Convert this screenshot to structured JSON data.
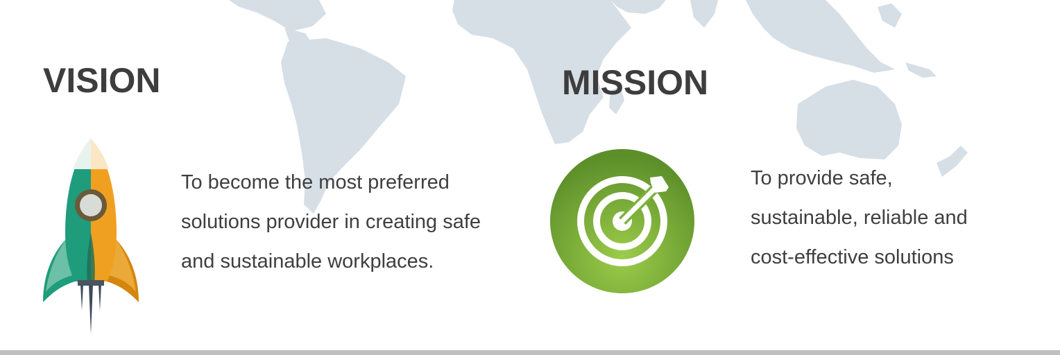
{
  "vision": {
    "heading": "VISION",
    "lines": [
      "To become the most preferred",
      "solutions provider in creating safe",
      "and sustainable workplaces."
    ],
    "icon": "rocket-icon"
  },
  "mission": {
    "heading": "MISSION",
    "lines": [
      "To provide safe,",
      "sustainable, reliable and",
      "cost-effective solutions"
    ],
    "icon": "target-icon"
  },
  "colors": {
    "heading": "#3d3d3d",
    "text": "#3f3f3f",
    "map": "#d6dee6",
    "rocket_teal": "#1f9c7c",
    "rocket_orange": "#f0a020",
    "target_green": "#6aa836",
    "bottom_bar": "#bfbfbf"
  }
}
